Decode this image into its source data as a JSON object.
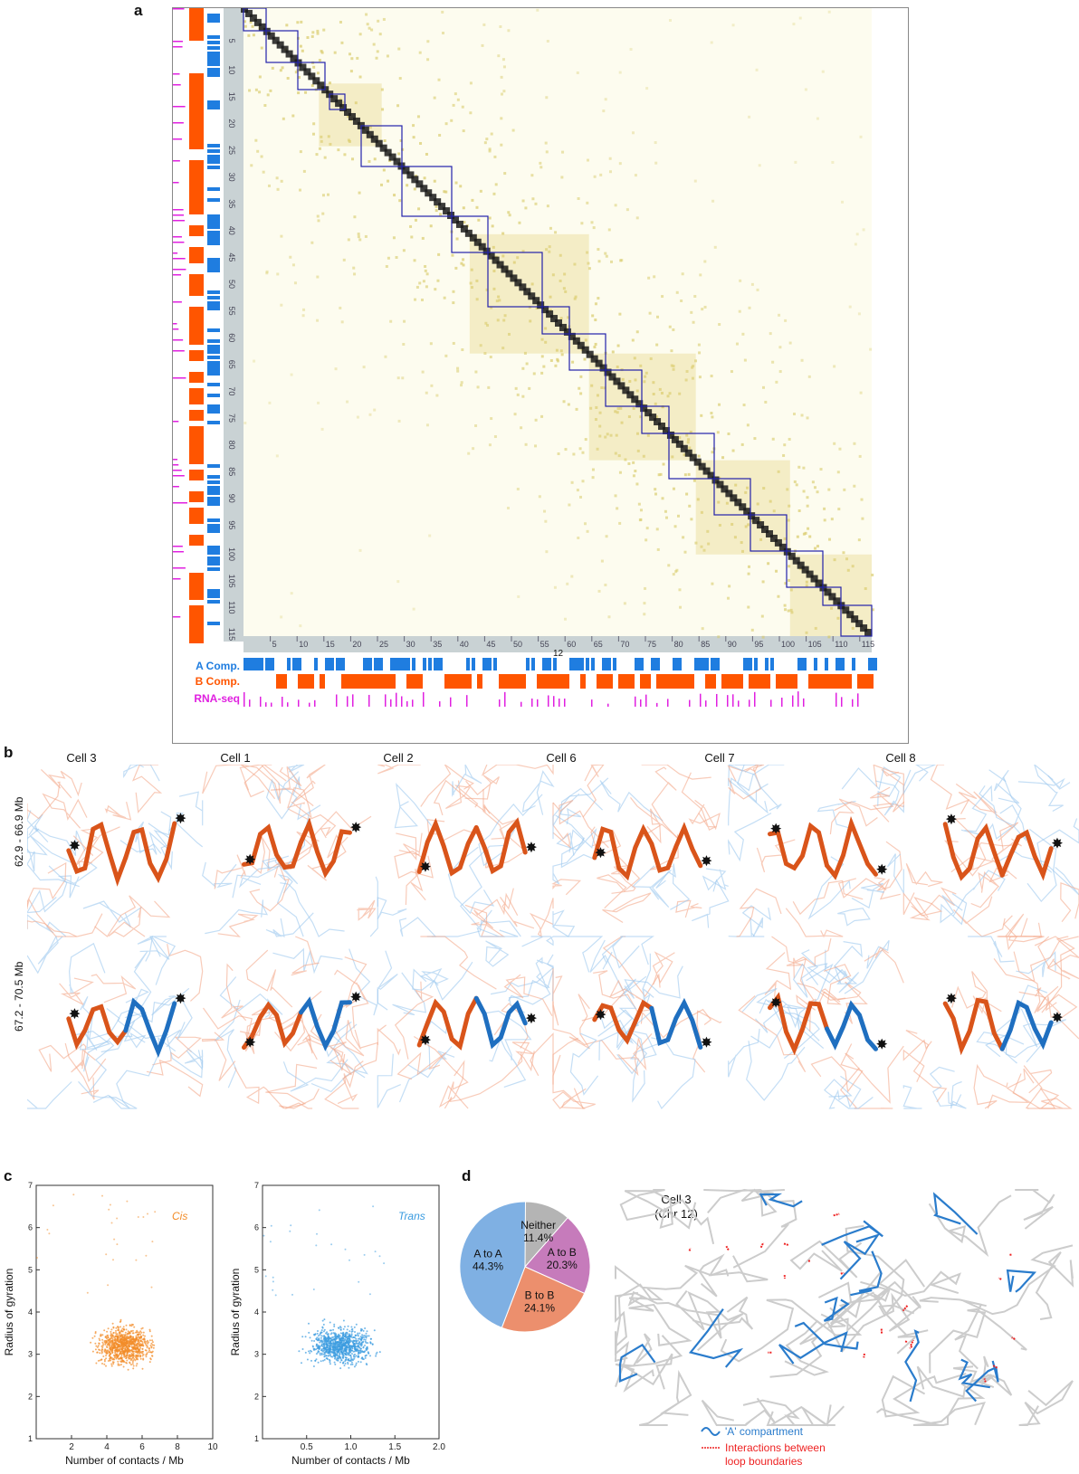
{
  "panels": {
    "a": {
      "label": "a",
      "chrom_label": "12",
      "axis_ticks": [
        "5",
        "10",
        "15",
        "20",
        "25",
        "30",
        "35",
        "40",
        "45",
        "50",
        "55",
        "60",
        "65",
        "70",
        "75",
        "80",
        "85",
        "90",
        "95",
        "100",
        "105",
        "110",
        "115"
      ],
      "track_labels": {
        "a_comp": "A Comp.",
        "b_comp": "B Comp.",
        "rna": "RNA-seq"
      },
      "colors": {
        "a_comp": "#1f7de0",
        "b_comp": "#ff5500",
        "rna": "#e020e0",
        "heat_low": "#f7f3c8",
        "heat_mid": "#c8b440",
        "heat_high": "#1a1a1a",
        "tad": "#2222aa"
      }
    },
    "b": {
      "label": "b",
      "cells": [
        "Cell 3",
        "Cell 1",
        "Cell 2",
        "Cell 6",
        "Cell 7",
        "Cell 8"
      ],
      "rows": [
        "62.9 - 66.9 Mb",
        "67.2 - 70.5 Mb"
      ]
    },
    "c": {
      "label": "c",
      "plots": [
        {
          "tag": "Cis",
          "color": "#f28c28",
          "xlabel": "Number of contacts / Mb",
          "ylabel": "Radius of gyration",
          "xticks": [
            "2",
            "4",
            "6",
            "8",
            "10"
          ],
          "yticks": [
            "1",
            "2",
            "3",
            "4",
            "5",
            "6",
            "7"
          ]
        },
        {
          "tag": "Trans",
          "color": "#3a9be0",
          "xlabel": "Number of contacts / Mb",
          "ylabel": "Radius of gyration",
          "xticks": [
            "0.5",
            "1.0",
            "1.5",
            "2.0"
          ],
          "yticks": [
            "1",
            "2",
            "3",
            "4",
            "5",
            "6",
            "7"
          ]
        }
      ]
    },
    "d": {
      "label": "d",
      "pie": [
        {
          "label": "A to A",
          "value": "44.3%",
          "pct": 44.3,
          "color": "#7fb0e3"
        },
        {
          "label": "B to B",
          "value": "24.1%",
          "pct": 24.1,
          "color": "#ec8f6d"
        },
        {
          "label": "A to B",
          "value": "20.3%",
          "pct": 20.3,
          "color": "#c67bbb"
        },
        {
          "label": "Neither",
          "value": "11.4%",
          "pct": 11.4,
          "color": "#b4b4b4"
        }
      ],
      "struct_title_1": "Cell 3",
      "struct_title_2": "(Chr 12)",
      "legend": {
        "a": "'A' compartment",
        "b1": "Interactions between",
        "b2": "loop boundaries"
      }
    }
  }
}
